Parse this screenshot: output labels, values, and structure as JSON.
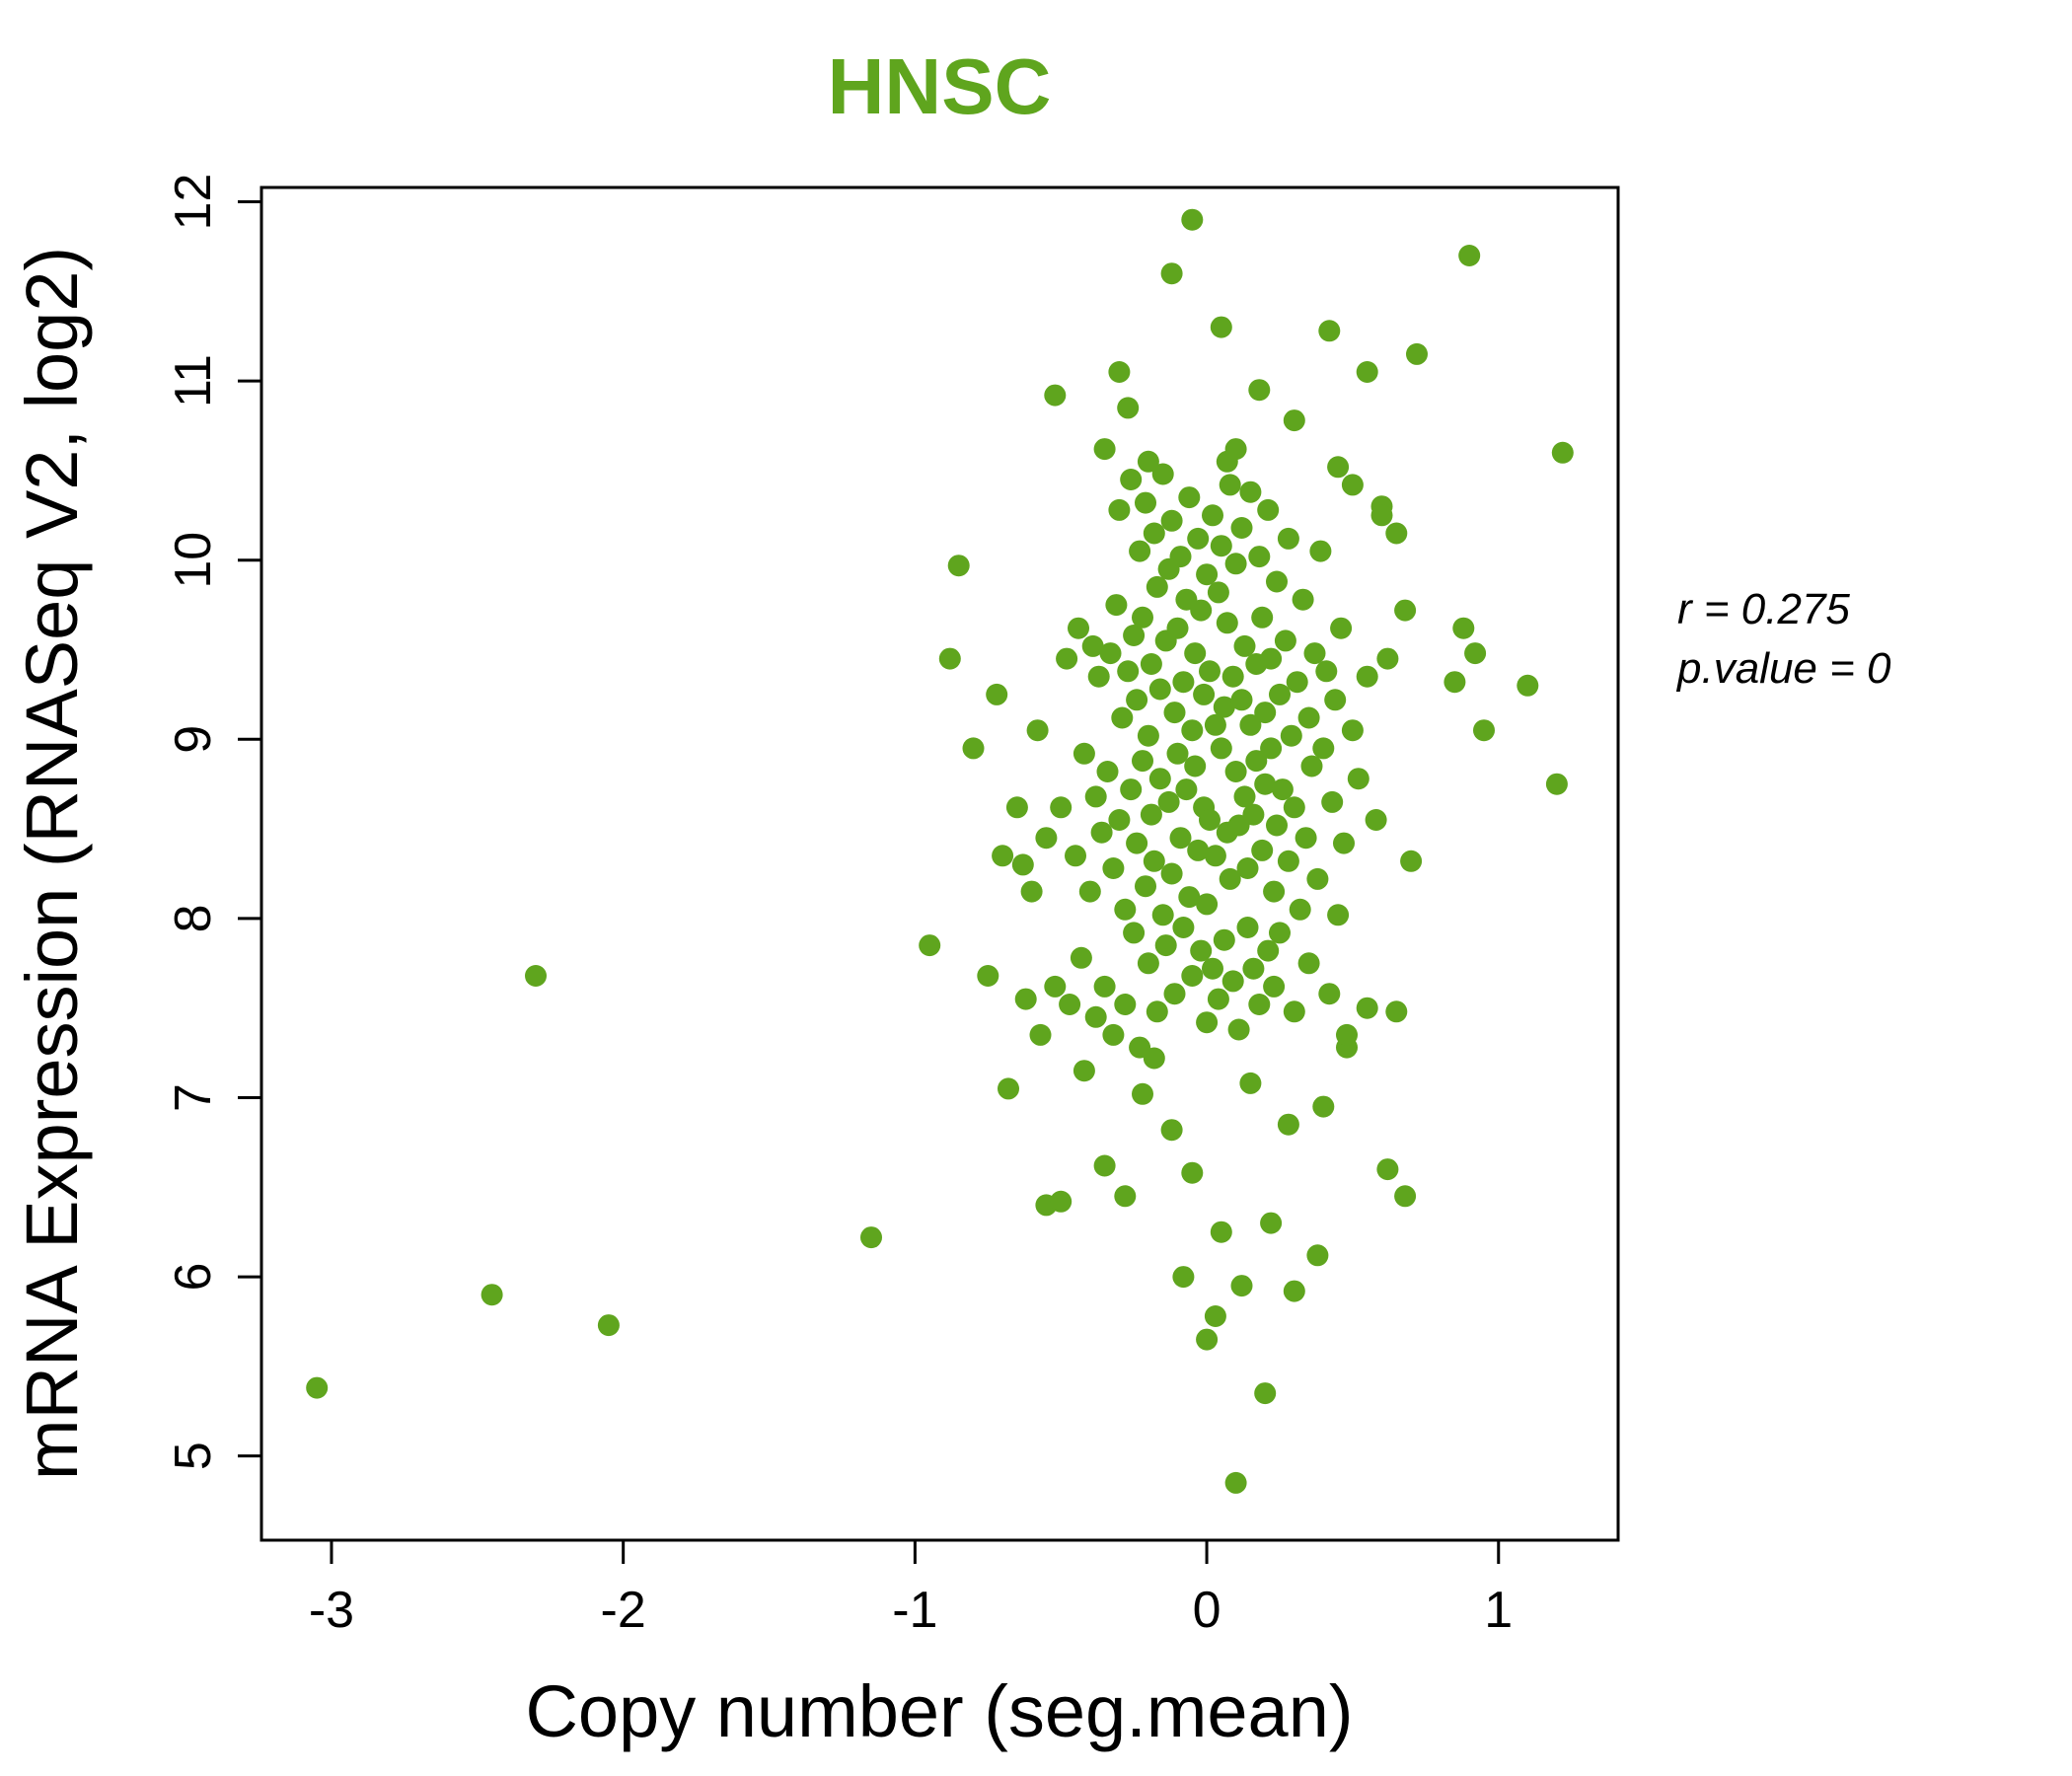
{
  "figure": {
    "title": "HNSC",
    "title_color": "#5fa51e",
    "annotation_lines": [
      "r = 0.275",
      "p.value = 0"
    ]
  },
  "chart_data": {
    "type": "scatter",
    "title": "HNSC",
    "xlabel": "Copy number (seg.mean)",
    "ylabel": "mRNA Expression (RNASeq V2, log2)",
    "xlim": [
      -3.24,
      1.41
    ],
    "ylim": [
      4.53,
      12.08
    ],
    "x_ticks": [
      -3,
      -2,
      -1,
      0,
      1
    ],
    "y_ticks": [
      5,
      6,
      7,
      8,
      9,
      10,
      11,
      12
    ],
    "grid": false,
    "legend": "none",
    "point_color": "#5fa51e",
    "annotations": [
      "r = 0.275",
      "p.value = 0"
    ],
    "points": [
      [
        -3.05,
        5.38
      ],
      [
        -2.45,
        5.9
      ],
      [
        -2.3,
        7.68
      ],
      [
        -2.05,
        5.73
      ],
      [
        -1.15,
        6.22
      ],
      [
        -0.95,
        7.85
      ],
      [
        -0.88,
        9.45
      ],
      [
        -0.85,
        9.97
      ],
      [
        -0.8,
        8.95
      ],
      [
        -0.75,
        7.68
      ],
      [
        -0.72,
        9.25
      ],
      [
        -0.7,
        8.35
      ],
      [
        -0.68,
        7.05
      ],
      [
        -0.65,
        8.62
      ],
      [
        -0.63,
        8.3
      ],
      [
        -0.62,
        7.55
      ],
      [
        -0.6,
        8.15
      ],
      [
        -0.58,
        9.05
      ],
      [
        -0.57,
        7.35
      ],
      [
        -0.55,
        8.45
      ],
      [
        -0.55,
        6.4
      ],
      [
        -0.52,
        7.62
      ],
      [
        -0.52,
        10.92
      ],
      [
        -0.35,
        10.62
      ],
      [
        -0.3,
        11.05
      ],
      [
        -0.27,
        10.85
      ],
      [
        -0.2,
        10.55
      ],
      [
        -0.12,
        11.6
      ],
      [
        -0.05,
        11.9
      ],
      [
        0.05,
        11.3
      ],
      [
        0.07,
        10.55
      ],
      [
        0.1,
        10.62
      ],
      [
        0.18,
        10.95
      ],
      [
        0.3,
        10.78
      ],
      [
        0.42,
        11.28
      ],
      [
        0.45,
        10.52
      ],
      [
        0.5,
        10.42
      ],
      [
        0.55,
        11.05
      ],
      [
        0.6,
        10.3
      ],
      [
        0.65,
        10.15
      ],
      [
        0.72,
        11.15
      ],
      [
        0.9,
        11.7
      ],
      [
        0.88,
        9.62
      ],
      [
        0.92,
        9.48
      ],
      [
        0.95,
        9.05
      ],
      [
        1.1,
        9.3
      ],
      [
        1.22,
        10.6
      ],
      [
        1.2,
        8.75
      ],
      [
        0.85,
        9.32
      ],
      [
        0.1,
        4.85
      ],
      [
        0.2,
        5.35
      ],
      [
        0.0,
        5.65
      ],
      [
        0.03,
        5.78
      ],
      [
        0.3,
        5.92
      ],
      [
        0.38,
        6.12
      ],
      [
        -0.08,
        6.0
      ],
      [
        -0.35,
        6.62
      ],
      [
        -0.28,
        6.45
      ],
      [
        -0.5,
        6.42
      ],
      [
        0.62,
        6.6
      ],
      [
        0.68,
        6.45
      ],
      [
        -0.12,
        6.82
      ],
      [
        0.28,
        6.85
      ],
      [
        0.4,
        6.95
      ],
      [
        -0.22,
        7.02
      ],
      [
        0.15,
        7.08
      ],
      [
        0.48,
        7.28
      ],
      [
        0.55,
        7.5
      ],
      [
        -0.42,
        7.15
      ],
      [
        -0.18,
        7.22
      ],
      [
        0.05,
        6.25
      ],
      [
        -0.05,
        6.58
      ],
      [
        0.12,
        5.95
      ],
      [
        0.22,
        6.3
      ],
      [
        -0.5,
        8.62
      ],
      [
        -0.48,
        9.45
      ],
      [
        -0.47,
        7.52
      ],
      [
        -0.45,
        8.35
      ],
      [
        -0.44,
        9.62
      ],
      [
        -0.43,
        7.78
      ],
      [
        -0.42,
        8.92
      ],
      [
        -0.4,
        8.15
      ],
      [
        -0.39,
        9.52
      ],
      [
        -0.38,
        7.45
      ],
      [
        -0.38,
        8.68
      ],
      [
        -0.37,
        9.35
      ],
      [
        -0.36,
        8.48
      ],
      [
        -0.35,
        7.62
      ],
      [
        -0.34,
        8.82
      ],
      [
        -0.33,
        9.48
      ],
      [
        -0.32,
        8.28
      ],
      [
        -0.32,
        7.35
      ],
      [
        -0.31,
        9.75
      ],
      [
        -0.3,
        8.55
      ],
      [
        -0.3,
        10.28
      ],
      [
        -0.29,
        9.12
      ],
      [
        -0.28,
        8.05
      ],
      [
        -0.28,
        7.52
      ],
      [
        -0.27,
        9.38
      ],
      [
        -0.26,
        8.72
      ],
      [
        -0.26,
        10.45
      ],
      [
        -0.25,
        9.58
      ],
      [
        -0.25,
        7.92
      ],
      [
        -0.24,
        8.42
      ],
      [
        -0.24,
        9.22
      ],
      [
        -0.23,
        10.05
      ],
      [
        -0.23,
        7.28
      ],
      [
        -0.22,
        8.88
      ],
      [
        -0.22,
        9.68
      ],
      [
        -0.21,
        8.18
      ],
      [
        -0.21,
        10.32
      ],
      [
        -0.2,
        9.02
      ],
      [
        -0.2,
        7.75
      ],
      [
        -0.19,
        8.58
      ],
      [
        -0.19,
        9.42
      ],
      [
        -0.18,
        10.15
      ],
      [
        -0.18,
        8.32
      ],
      [
        -0.17,
        9.85
      ],
      [
        -0.17,
        7.48
      ],
      [
        -0.16,
        8.78
      ],
      [
        -0.16,
        9.28
      ],
      [
        -0.15,
        10.48
      ],
      [
        -0.15,
        8.02
      ],
      [
        -0.14,
        9.55
      ],
      [
        -0.14,
        7.85
      ],
      [
        -0.13,
        8.65
      ],
      [
        -0.13,
        9.95
      ],
      [
        -0.12,
        8.25
      ],
      [
        -0.12,
        10.22
      ],
      [
        -0.11,
        9.15
      ],
      [
        -0.11,
        7.58
      ],
      [
        -0.1,
        8.92
      ],
      [
        -0.1,
        9.62
      ],
      [
        -0.09,
        8.45
      ],
      [
        -0.09,
        10.02
      ],
      [
        -0.08,
        9.32
      ],
      [
        -0.08,
        7.95
      ],
      [
        -0.07,
        8.72
      ],
      [
        -0.07,
        9.78
      ],
      [
        -0.06,
        8.12
      ],
      [
        -0.06,
        10.35
      ],
      [
        -0.05,
        9.05
      ],
      [
        -0.05,
        7.68
      ],
      [
        -0.04,
        8.85
      ],
      [
        -0.04,
        9.48
      ],
      [
        -0.03,
        10.12
      ],
      [
        -0.03,
        8.38
      ],
      [
        -0.02,
        9.72
      ],
      [
        -0.02,
        7.82
      ],
      [
        -0.01,
        8.62
      ],
      [
        -0.01,
        9.25
      ],
      [
        0,
        9.92
      ],
      [
        0,
        8.08
      ],
      [
        0,
        7.42
      ],
      [
        0.01,
        9.38
      ],
      [
        0.01,
        8.55
      ],
      [
        0.02,
        10.25
      ],
      [
        0.02,
        7.72
      ],
      [
        0.03,
        9.08
      ],
      [
        0.03,
        8.35
      ],
      [
        0.04,
        9.82
      ],
      [
        0.04,
        7.55
      ],
      [
        0.05,
        8.95
      ],
      [
        0.05,
        10.08
      ],
      [
        0.06,
        9.18
      ],
      [
        0.06,
        7.88
      ],
      [
        0.07,
        8.48
      ],
      [
        0.07,
        9.65
      ],
      [
        0.08,
        10.42
      ],
      [
        0.08,
        8.22
      ],
      [
        0.09,
        9.35
      ],
      [
        0.09,
        7.65
      ],
      [
        0.1,
        8.82
      ],
      [
        0.1,
        9.98
      ],
      [
        0.11,
        8.52
      ],
      [
        0.11,
        7.38
      ],
      [
        0.12,
        9.22
      ],
      [
        0.12,
        10.18
      ],
      [
        0.13,
        8.68
      ],
      [
        0.13,
        9.52
      ],
      [
        0.14,
        7.95
      ],
      [
        0.14,
        8.28
      ],
      [
        0.15,
        9.08
      ],
      [
        0.15,
        10.38
      ],
      [
        0.16,
        8.58
      ],
      [
        0.16,
        7.72
      ],
      [
        0.17,
        9.42
      ],
      [
        0.17,
        8.88
      ],
      [
        0.18,
        10.02
      ],
      [
        0.18,
        7.52
      ],
      [
        0.19,
        8.38
      ],
      [
        0.19,
        9.68
      ],
      [
        0.2,
        8.75
      ],
      [
        0.2,
        9.15
      ],
      [
        0.21,
        7.82
      ],
      [
        0.21,
        10.28
      ],
      [
        0.22,
        8.95
      ],
      [
        0.22,
        9.45
      ],
      [
        0.23,
        8.15
      ],
      [
        0.23,
        7.62
      ],
      [
        0.24,
        9.88
      ],
      [
        0.24,
        8.52
      ],
      [
        0.25,
        9.25
      ],
      [
        0.25,
        7.92
      ],
      [
        0.26,
        8.72
      ],
      [
        0.27,
        9.55
      ],
      [
        0.28,
        8.32
      ],
      [
        0.28,
        10.12
      ],
      [
        0.29,
        9.02
      ],
      [
        0.3,
        8.62
      ],
      [
        0.3,
        7.48
      ],
      [
        0.31,
        9.32
      ],
      [
        0.32,
        8.05
      ],
      [
        0.33,
        9.78
      ],
      [
        0.34,
        8.45
      ],
      [
        0.35,
        9.12
      ],
      [
        0.35,
        7.75
      ],
      [
        0.36,
        8.85
      ],
      [
        0.37,
        9.48
      ],
      [
        0.38,
        8.22
      ],
      [
        0.39,
        10.05
      ],
      [
        0.4,
        8.95
      ],
      [
        0.41,
        9.38
      ],
      [
        0.42,
        7.58
      ],
      [
        0.43,
        8.65
      ],
      [
        0.44,
        9.22
      ],
      [
        0.45,
        8.02
      ],
      [
        0.46,
        9.62
      ],
      [
        0.47,
        8.42
      ],
      [
        0.48,
        7.35
      ],
      [
        0.5,
        9.05
      ],
      [
        0.52,
        8.78
      ],
      [
        0.55,
        9.35
      ],
      [
        0.58,
        8.55
      ],
      [
        0.6,
        10.25
      ],
      [
        0.62,
        9.45
      ],
      [
        0.65,
        7.48
      ],
      [
        0.68,
        9.72
      ],
      [
        0.7,
        8.32
      ]
    ]
  }
}
